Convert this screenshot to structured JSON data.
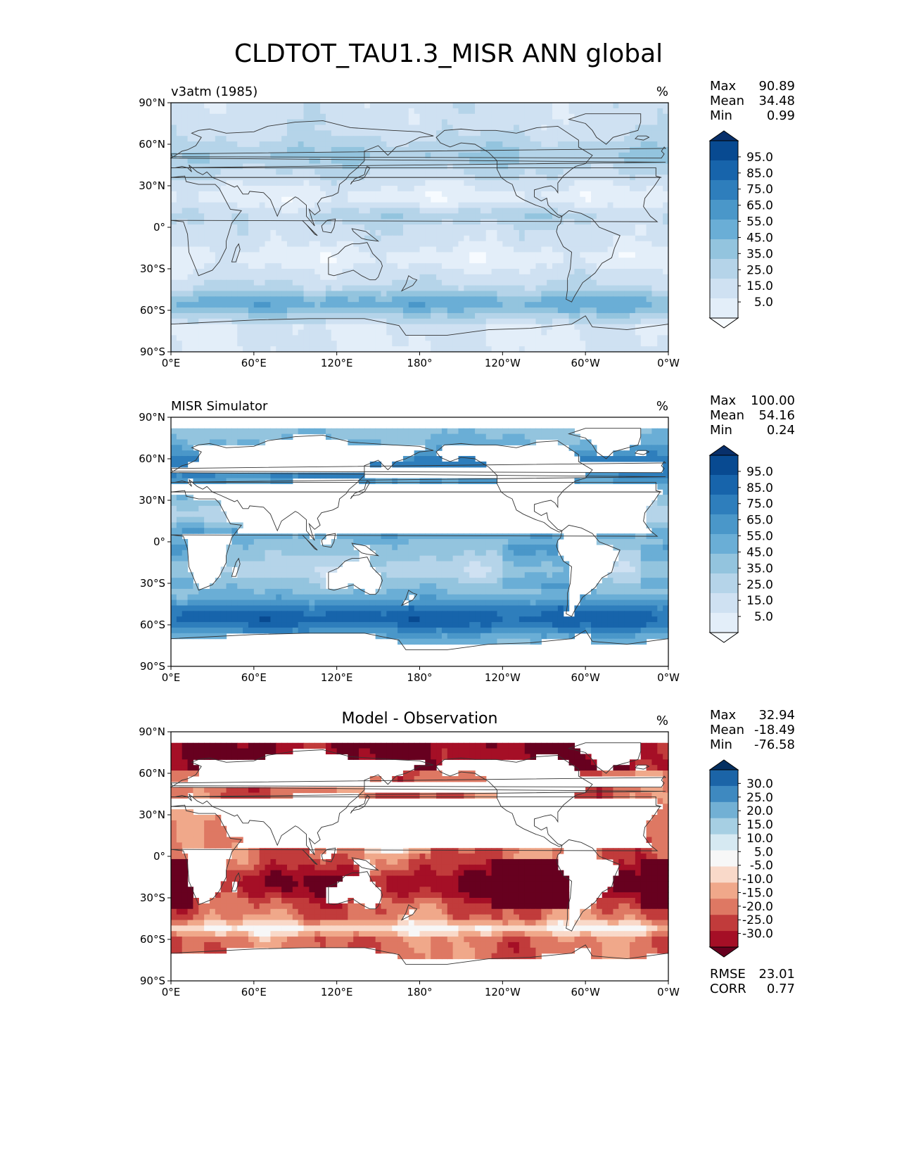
{
  "figure_title": "CLDTOT_TAU1.3_MISR ANN global",
  "colors": {
    "blues": [
      "#f7fbff",
      "#e3eef9",
      "#cfe1f2",
      "#b5d4e9",
      "#93c4de",
      "#6aaed6",
      "#4a97c9",
      "#2e7ebc",
      "#1764ab",
      "#084a91",
      "#08306b"
    ],
    "rdbu": [
      "#67001f",
      "#a50f26",
      "#c13b3b",
      "#de7863",
      "#f0a88a",
      "#f9d9c9",
      "#f7f7f7",
      "#d6e9f2",
      "#a6cfe3",
      "#72b0d4",
      "#3e89c0",
      "#1b64a7",
      "#053061"
    ],
    "coast": "#333333",
    "land_fill": "#ffffff"
  },
  "chart_data": [
    {
      "type": "heatmap",
      "panel": "test",
      "label": "v3atm (1985)",
      "units": "%",
      "title": "",
      "x_ticks": [
        "0°E",
        "60°E",
        "120°E",
        "180°",
        "120°W",
        "60°W",
        "0°W"
      ],
      "y_ticks": [
        "90°N",
        "60°N",
        "30°N",
        "0°",
        "30°S",
        "60°S",
        "90°S"
      ],
      "xlim": [
        0,
        360
      ],
      "ylim": [
        -90,
        90
      ],
      "stats": [
        [
          "Max",
          "90.89"
        ],
        [
          "Mean",
          "34.48"
        ],
        [
          "Min",
          "0.99"
        ]
      ],
      "colorbar": {
        "levels": [
          "5.0",
          "15.0",
          "25.0",
          "35.0",
          "45.0",
          "55.0",
          "65.0",
          "75.0",
          "85.0",
          "95.0"
        ],
        "palette": "blues",
        "extend": "both"
      },
      "field": "test"
    },
    {
      "type": "heatmap",
      "panel": "reference",
      "label": "MISR Simulator",
      "units": "%",
      "title": "",
      "x_ticks": [
        "0°E",
        "60°E",
        "120°E",
        "180°",
        "120°W",
        "60°W",
        "0°W"
      ],
      "y_ticks": [
        "90°N",
        "60°N",
        "30°N",
        "0°",
        "30°S",
        "60°S",
        "90°S"
      ],
      "xlim": [
        0,
        360
      ],
      "ylim": [
        -90,
        90
      ],
      "stats": [
        [
          "Max",
          "100.00"
        ],
        [
          "Mean",
          "54.16"
        ],
        [
          "Min",
          "0.24"
        ]
      ],
      "colorbar": {
        "levels": [
          "5.0",
          "15.0",
          "25.0",
          "35.0",
          "45.0",
          "55.0",
          "65.0",
          "75.0",
          "85.0",
          "95.0"
        ],
        "palette": "blues",
        "extend": "both"
      },
      "field": "reference"
    },
    {
      "type": "heatmap",
      "panel": "difference",
      "label": "",
      "units": "%",
      "title": "Model - Observation",
      "x_ticks": [
        "0°E",
        "60°E",
        "120°E",
        "180°",
        "120°W",
        "60°W",
        "0°W"
      ],
      "y_ticks": [
        "90°N",
        "60°N",
        "30°N",
        "0°",
        "30°S",
        "60°S",
        "90°S"
      ],
      "xlim": [
        0,
        360
      ],
      "ylim": [
        -90,
        90
      ],
      "stats": [
        [
          "Max",
          "32.94"
        ],
        [
          "Mean",
          "-18.49"
        ],
        [
          "Min",
          "-76.58"
        ]
      ],
      "bottom_stats": [
        [
          "RMSE",
          "23.01"
        ],
        [
          "CORR",
          "0.77"
        ]
      ],
      "colorbar": {
        "levels": [
          "-30.0",
          "-25.0",
          "-20.0",
          "-15.0",
          "-10.0",
          "-5.0",
          "5.0",
          "10.0",
          "15.0",
          "20.0",
          "25.0",
          "30.0"
        ],
        "palette": "rdbu",
        "extend": "both"
      },
      "field": "difference"
    }
  ]
}
